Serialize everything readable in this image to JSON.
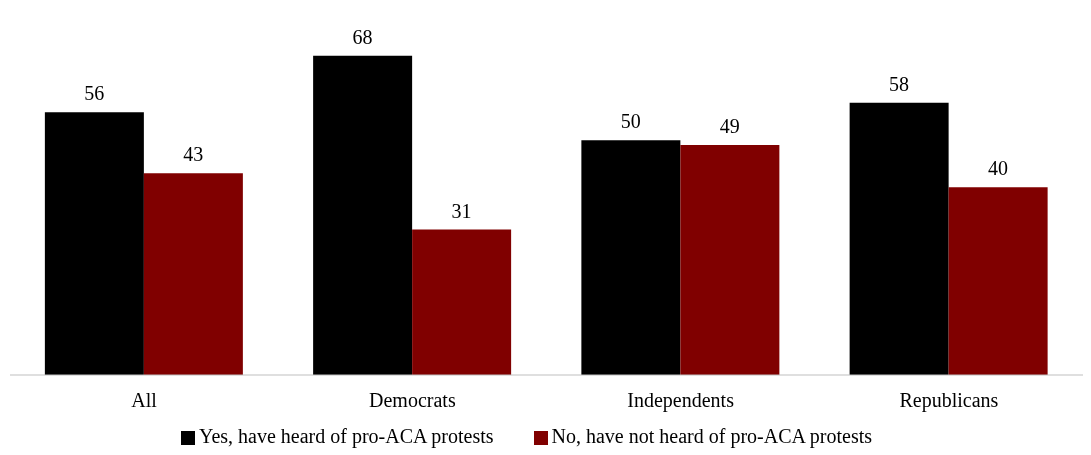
{
  "chart_data": {
    "type": "bar",
    "categories": [
      "All",
      "Democrats",
      "Independents",
      "Republicans"
    ],
    "series": [
      {
        "name": "Yes, have heard of pro-ACA protests",
        "color": "#000000",
        "values": [
          56,
          68,
          50,
          58
        ]
      },
      {
        "name": "No, have not heard of pro-ACA protests",
        "color": "#800000",
        "values": [
          43,
          31,
          49,
          40
        ]
      }
    ],
    "data_labels": true,
    "legend": "bottom",
    "grid": false
  }
}
